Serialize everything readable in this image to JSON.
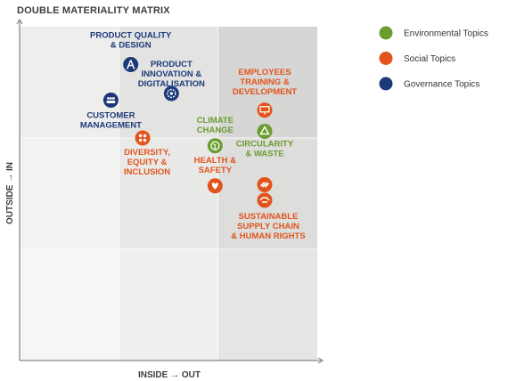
{
  "chart_data": {
    "type": "scatter",
    "title": "DOUBLE MATERIALITY MATRIX",
    "xlabel": "INSIDE → OUT",
    "ylabel": "OUTSIDE → IN",
    "xlim": [
      0,
      3
    ],
    "ylim": [
      0,
      3
    ],
    "grid": true,
    "legend_position": "right",
    "series": [
      {
        "name": "Environmental Topics",
        "color": "#6a9c2f"
      },
      {
        "name": "Social Topics",
        "color": "#e2541c"
      },
      {
        "name": "Governance Topics",
        "color": "#1c3a7a"
      }
    ],
    "points": [
      {
        "label": [
          "PRODUCT QUALITY",
          "& DESIGN"
        ],
        "series": 2,
        "icon": "compass-icon",
        "x": 1.12,
        "y": 2.66
      },
      {
        "label": [
          "PRODUCT",
          "INNOVATION &",
          "DIGITALISATION"
        ],
        "series": 2,
        "icon": "gear-icon",
        "x": 1.53,
        "y": 2.4
      },
      {
        "label": [
          "CUSTOMER",
          "MANAGEMENT"
        ],
        "series": 2,
        "icon": "people-icon",
        "x": 0.92,
        "y": 2.34
      },
      {
        "label": [
          "EMPLOYEES",
          "TRAINING &",
          "DEVELOPMENT"
        ],
        "series": 1,
        "icon": "presentation-icon",
        "x": 2.47,
        "y": 2.25
      },
      {
        "label": [
          "DIVERSITY,",
          "EQUITY &",
          "INCLUSION"
        ],
        "series": 1,
        "icon": "diversity-icon",
        "x": 1.24,
        "y": 2.0
      },
      {
        "label": [
          "CLIMATE",
          "CHANGE"
        ],
        "series": 0,
        "icon": "globe-icon",
        "x": 1.97,
        "y": 1.93
      },
      {
        "label": [
          "CIRCULARITY",
          "& WASTE"
        ],
        "series": 0,
        "icon": "recycle-icon",
        "x": 2.47,
        "y": 2.06
      },
      {
        "label": [
          "HEALTH &",
          "SAFETY"
        ],
        "series": 1,
        "icon": "heart-icon",
        "x": 1.97,
        "y": 1.57
      },
      {
        "label": [],
        "series": 1,
        "icon": "link-icon",
        "x": 2.47,
        "y": 1.58
      },
      {
        "label": [
          "SUSTAINABLE",
          "SUPPLY CHAIN",
          "& HUMAN RIGHTS"
        ],
        "series": 1,
        "icon": "handshake-icon",
        "x": 2.47,
        "y": 1.44
      }
    ]
  }
}
